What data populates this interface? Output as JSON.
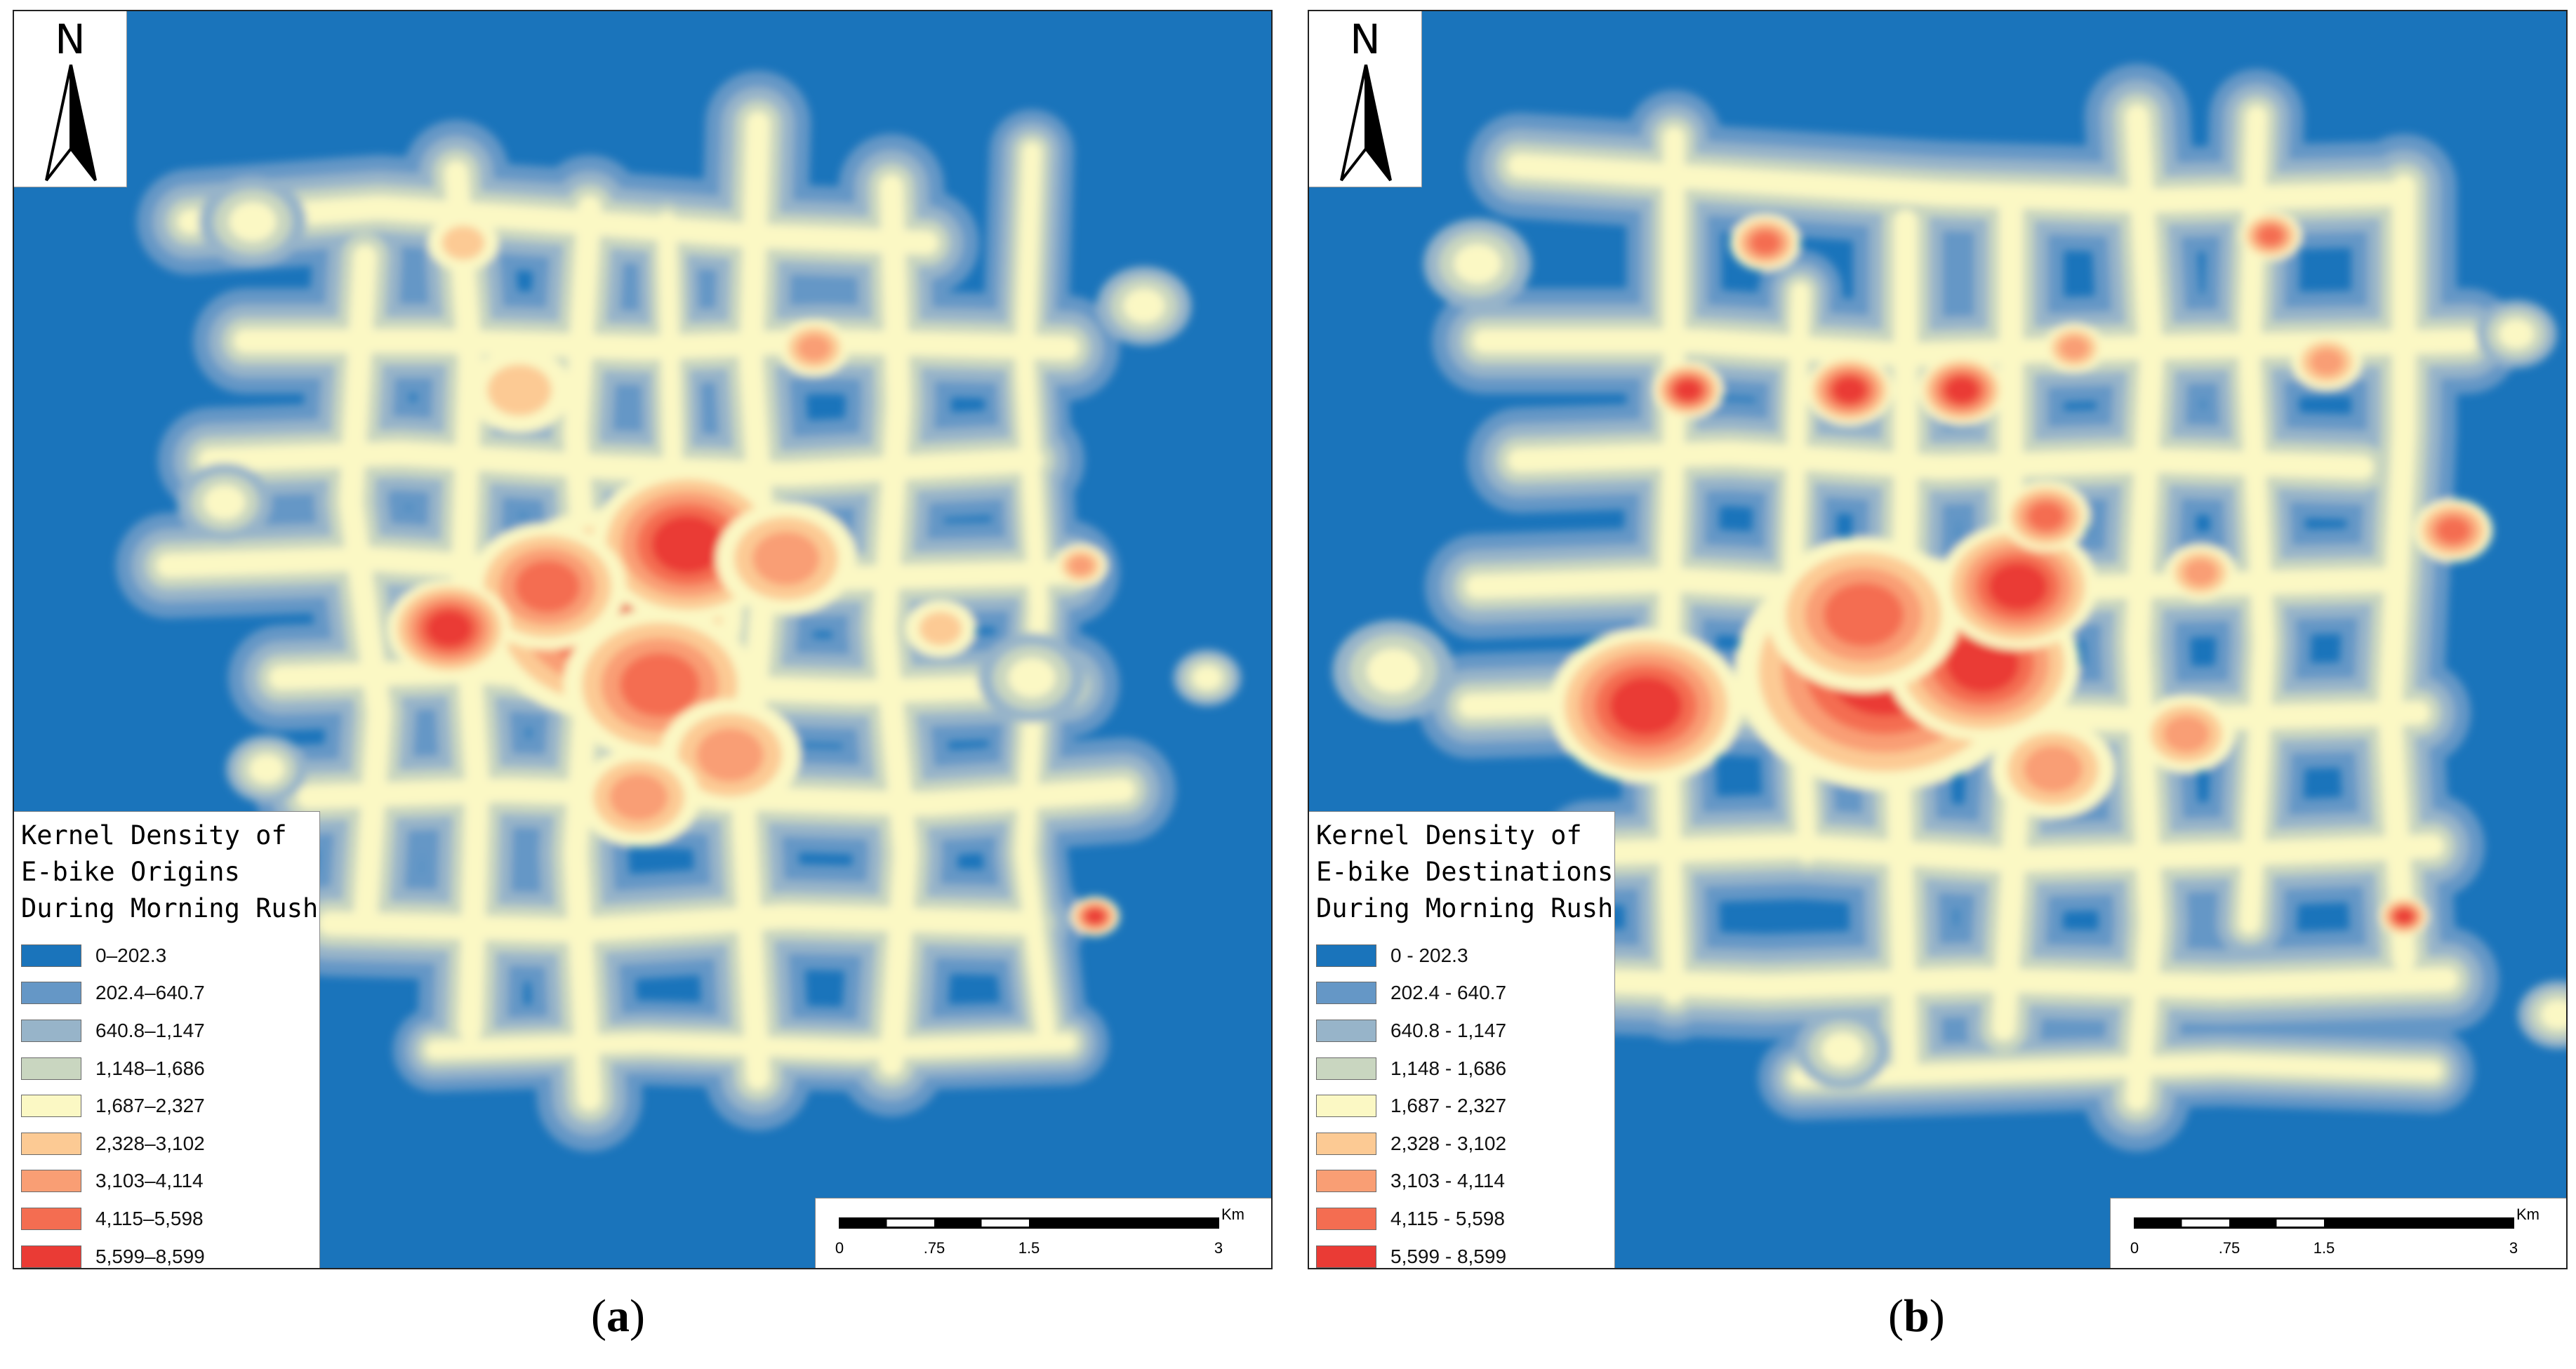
{
  "legend_classes": [
    {
      "color": "#1a74bb"
    },
    {
      "color": "#6597c6"
    },
    {
      "color": "#97b4c9"
    },
    {
      "color": "#c9d6c0"
    },
    {
      "color": "#fbf8c4"
    },
    {
      "color": "#fcca94"
    },
    {
      "color": "#f99e74"
    },
    {
      "color": "#f46d51"
    },
    {
      "color": "#ea3b35"
    }
  ],
  "north_label": "N",
  "panels": [
    {
      "id": "a",
      "caption_open": "(",
      "caption_letter": "a",
      "caption_close": ")",
      "legend_title": [
        "Kernel Density of",
        "E-bike Origins",
        "During Morning Rush"
      ],
      "legend_labels": [
        "0–202.3",
        "202.4–640.7",
        "640.8–1,147",
        "1,148–1,686",
        "1,687–2,327",
        "2,328–3,102",
        "3,103–4,114",
        "4,115–5,598",
        "5,599–8,599"
      ],
      "scale": {
        "unit": "Km",
        "ticks": [
          "0",
          ".75",
          "1.5",
          "3"
        ]
      }
    },
    {
      "id": "b",
      "caption_open": "(",
      "caption_letter": "b",
      "caption_close": ")",
      "legend_title": [
        "Kernel Density of",
        "E-bike Destinations",
        "During Morning Rush"
      ],
      "legend_labels": [
        "0 - 202.3",
        "202.4 - 640.7",
        "640.8 - 1,147",
        "1,148 - 1,686",
        "1,687 - 2,327",
        "2,328 - 3,102",
        "3,103 - 4,114",
        "4,115 - 5,598",
        "5,599 - 8,599"
      ],
      "scale": {
        "unit": "Km",
        "ticks": [
          "0",
          ".75",
          "1.5",
          "3"
        ]
      }
    }
  ]
}
